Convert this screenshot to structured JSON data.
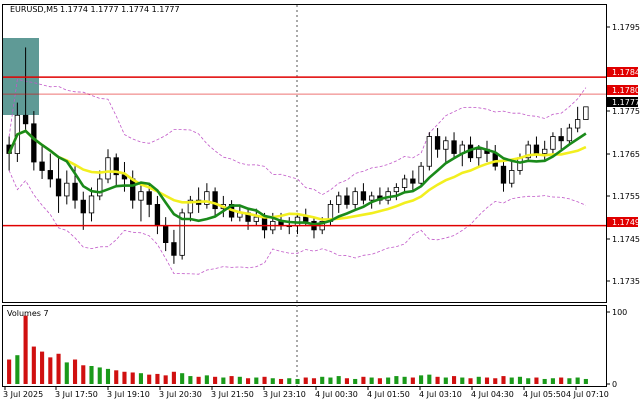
{
  "chart_header": {
    "symbol_label": "EURUSD,M5",
    "ohlc": "1.1774 1.1777 1.1774 1.1777"
  },
  "price_axis": {
    "ticks": [
      "1.1795",
      "1.1775",
      "1.1765",
      "1.1755",
      "1.1745",
      "1.1735"
    ],
    "level_labels": {
      "resistance_high": "1.1784",
      "resistance_low": "1.1780",
      "current": "1.1777",
      "support": "1.1749"
    }
  },
  "time_axis": {
    "ticks": [
      "3 Jul 2025",
      "3 Jul 17:50",
      "3 Jul 19:10",
      "3 Jul 20:30",
      "3 Jul 21:50",
      "3 Jul 23:10",
      "4 Jul 00:30",
      "4 Jul 01:50",
      "4 Jul 03:10",
      "4 Jul 04:30",
      "4 Jul 05:50",
      "4 Jul 07:10"
    ]
  },
  "volume_panel": {
    "label": "Volumes 7",
    "axis_ticks": [
      "100",
      "0"
    ]
  },
  "colors": {
    "bull_candle": "#000000",
    "bear_candle": "#000000",
    "ma_fast": "#1a8a1a",
    "ma_slow": "#f2ef1f",
    "bollinger": "#c158c8",
    "level_line": "#e00000",
    "volume_up": "#1a9a1a",
    "volume_down": "#d01010",
    "highlight_box": "#5f9a96"
  },
  "chart_data": {
    "type": "candlestick",
    "symbol": "EURUSD",
    "timeframe": "M5",
    "ylim": [
      1.1731,
      1.1801
    ],
    "horizontal_levels": [
      1.1784,
      1.178,
      1.1749
    ],
    "last_price": 1.1777,
    "candles": [
      [
        1.1768,
        1.177,
        1.1762,
        1.1766
      ],
      [
        1.1766,
        1.1778,
        1.1764,
        1.1775
      ],
      [
        1.1775,
        1.1791,
        1.1771,
        1.1773
      ],
      [
        1.1773,
        1.1776,
        1.1762,
        1.1764
      ],
      [
        1.1764,
        1.1768,
        1.176,
        1.1762
      ],
      [
        1.1762,
        1.1766,
        1.1758,
        1.176
      ],
      [
        1.176,
        1.1765,
        1.1752,
        1.1756
      ],
      [
        1.1756,
        1.1762,
        1.1754,
        1.1759
      ],
      [
        1.1759,
        1.1763,
        1.1753,
        1.1755
      ],
      [
        1.1755,
        1.1757,
        1.1748,
        1.1752
      ],
      [
        1.1752,
        1.1758,
        1.175,
        1.1756
      ],
      [
        1.1756,
        1.1762,
        1.1755,
        1.176
      ],
      [
        1.176,
        1.1767,
        1.1759,
        1.1765
      ],
      [
        1.1765,
        1.1766,
        1.1758,
        1.1761
      ],
      [
        1.1761,
        1.1764,
        1.1757,
        1.176
      ],
      [
        1.176,
        1.1762,
        1.1753,
        1.1755
      ],
      [
        1.1755,
        1.1759,
        1.175,
        1.1757
      ],
      [
        1.1757,
        1.1759,
        1.1751,
        1.1754
      ],
      [
        1.1754,
        1.1756,
        1.1747,
        1.1749
      ],
      [
        1.1749,
        1.1751,
        1.1743,
        1.1745
      ],
      [
        1.1745,
        1.1748,
        1.174,
        1.1742
      ],
      [
        1.1742,
        1.1753,
        1.1741,
        1.1752
      ],
      [
        1.1752,
        1.1756,
        1.175,
        1.1755
      ],
      [
        1.1755,
        1.1758,
        1.1752,
        1.1754
      ],
      [
        1.1754,
        1.1759,
        1.1753,
        1.1757
      ],
      [
        1.1757,
        1.1758,
        1.1751,
        1.1753
      ],
      [
        1.1753,
        1.1756,
        1.1751,
        1.1754
      ],
      [
        1.1754,
        1.1755,
        1.175,
        1.1751
      ],
      [
        1.1751,
        1.1754,
        1.175,
        1.1752
      ],
      [
        1.1752,
        1.1753,
        1.1748,
        1.175
      ],
      [
        1.175,
        1.1753,
        1.1749,
        1.1751
      ],
      [
        1.1751,
        1.1752,
        1.1746,
        1.1748
      ],
      [
        1.1748,
        1.1752,
        1.1747,
        1.175
      ],
      [
        1.175,
        1.1752,
        1.1748,
        1.1749
      ],
      [
        1.1749,
        1.1751,
        1.1747,
        1.1749
      ],
      [
        1.1749,
        1.1752,
        1.1747,
        1.1751
      ],
      [
        1.1751,
        1.1753,
        1.1749,
        1.175
      ],
      [
        1.175,
        1.1751,
        1.1746,
        1.1748
      ],
      [
        1.1748,
        1.1751,
        1.1747,
        1.175
      ],
      [
        1.175,
        1.1755,
        1.1749,
        1.1754
      ],
      [
        1.1754,
        1.1757,
        1.1752,
        1.1756
      ],
      [
        1.1756,
        1.1758,
        1.1753,
        1.1754
      ],
      [
        1.1754,
        1.1758,
        1.1753,
        1.1757
      ],
      [
        1.1757,
        1.1759,
        1.1754,
        1.1755
      ],
      [
        1.1755,
        1.1757,
        1.1753,
        1.1756
      ],
      [
        1.1756,
        1.1758,
        1.1754,
        1.1755
      ],
      [
        1.1755,
        1.1758,
        1.1754,
        1.1757
      ],
      [
        1.1757,
        1.1759,
        1.1755,
        1.1758
      ],
      [
        1.1758,
        1.1761,
        1.1757,
        1.176
      ],
      [
        1.176,
        1.1762,
        1.1757,
        1.1759
      ],
      [
        1.1759,
        1.1764,
        1.1758,
        1.1763
      ],
      [
        1.1763,
        1.1771,
        1.1762,
        1.177
      ],
      [
        1.177,
        1.1772,
        1.1765,
        1.1767
      ],
      [
        1.1767,
        1.177,
        1.1764,
        1.1769
      ],
      [
        1.1769,
        1.1771,
        1.1765,
        1.1766
      ],
      [
        1.1766,
        1.1769,
        1.1763,
        1.1768
      ],
      [
        1.1768,
        1.177,
        1.1764,
        1.1765
      ],
      [
        1.1765,
        1.1768,
        1.1763,
        1.1767
      ],
      [
        1.1767,
        1.1769,
        1.1764,
        1.1766
      ],
      [
        1.1766,
        1.1768,
        1.1762,
        1.1763
      ],
      [
        1.1763,
        1.1765,
        1.1757,
        1.1759
      ],
      [
        1.1759,
        1.1764,
        1.1758,
        1.1762
      ],
      [
        1.1762,
        1.1766,
        1.1761,
        1.1765
      ],
      [
        1.1765,
        1.1769,
        1.1764,
        1.1768
      ],
      [
        1.1768,
        1.177,
        1.1765,
        1.1766
      ],
      [
        1.1766,
        1.1769,
        1.1764,
        1.1767
      ],
      [
        1.1767,
        1.1771,
        1.1766,
        1.177
      ],
      [
        1.177,
        1.1772,
        1.1767,
        1.1769
      ],
      [
        1.1769,
        1.1773,
        1.1768,
        1.1772
      ],
      [
        1.1772,
        1.1777,
        1.1771,
        1.1774
      ],
      [
        1.1774,
        1.1777,
        1.1774,
        1.1777
      ]
    ],
    "volumes": [
      34,
      40,
      95,
      52,
      45,
      37,
      42,
      30,
      34,
      26,
      25,
      23,
      21,
      19,
      17,
      16,
      15,
      13,
      14,
      12,
      17,
      15,
      11,
      10,
      12,
      10,
      9,
      11,
      10,
      8,
      9,
      10,
      8,
      7,
      8,
      7,
      9,
      8,
      10,
      9,
      11,
      8,
      7,
      10,
      9,
      8,
      9,
      11,
      10,
      9,
      12,
      13,
      10,
      9,
      11,
      9,
      8,
      10,
      9,
      8,
      11,
      9,
      10,
      8,
      9,
      7,
      8,
      9,
      8,
      9,
      7
    ]
  }
}
